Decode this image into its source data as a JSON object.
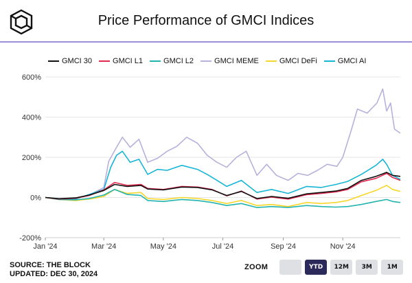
{
  "header": {
    "title": "Price Performance of GMCI Indices"
  },
  "footer": {
    "source": "SOURCE: THE BLOCK",
    "updated": "UPDATED: DEC 30, 2024"
  },
  "zoom": {
    "label": "ZOOM",
    "options": [
      {
        "label": "",
        "active": false
      },
      {
        "label": "YTD",
        "active": true
      },
      {
        "label": "12M",
        "active": false
      },
      {
        "label": "3M",
        "active": false
      },
      {
        "label": "1M",
        "active": false
      }
    ]
  },
  "chart_data": {
    "type": "line",
    "title": "Price Performance of GMCI Indices",
    "xlabel": "",
    "ylabel": "",
    "x_range": [
      "2024-01-01",
      "2024-12-30"
    ],
    "ylim": [
      -200,
      600
    ],
    "y_ticks": [
      -200,
      0,
      200,
      400,
      600
    ],
    "y_tick_labels": [
      "-200%",
      "0%",
      "200%",
      "400%",
      "600%"
    ],
    "x_ticks": [
      "2024-01-01",
      "2024-03-01",
      "2024-05-01",
      "2024-07-01",
      "2024-09-01",
      "2024-11-01"
    ],
    "x_tick_labels": [
      "Jan '24",
      "Mar '24",
      "May '24",
      "Jul '24",
      "Sep '24",
      "Nov '24"
    ],
    "grid": "horizontal",
    "legend_position": "top",
    "series": [
      {
        "name": "GMCI 30",
        "color": "#111111",
        "points": [
          [
            "2024-01-01",
            0
          ],
          [
            "2024-01-15",
            -6
          ],
          [
            "2024-02-01",
            -2
          ],
          [
            "2024-02-15",
            12
          ],
          [
            "2024-03-01",
            35
          ],
          [
            "2024-03-12",
            65
          ],
          [
            "2024-03-25",
            55
          ],
          [
            "2024-04-08",
            60
          ],
          [
            "2024-04-15",
            42
          ],
          [
            "2024-05-01",
            38
          ],
          [
            "2024-05-20",
            52
          ],
          [
            "2024-06-05",
            50
          ],
          [
            "2024-06-20",
            38
          ],
          [
            "2024-07-05",
            10
          ],
          [
            "2024-07-20",
            30
          ],
          [
            "2024-08-05",
            -5
          ],
          [
            "2024-08-20",
            5
          ],
          [
            "2024-09-06",
            -4
          ],
          [
            "2024-09-25",
            18
          ],
          [
            "2024-10-10",
            25
          ],
          [
            "2024-10-25",
            32
          ],
          [
            "2024-11-06",
            45
          ],
          [
            "2024-11-20",
            85
          ],
          [
            "2024-12-05",
            105
          ],
          [
            "2024-12-16",
            125
          ],
          [
            "2024-12-22",
            110
          ],
          [
            "2024-12-30",
            105
          ]
        ]
      },
      {
        "name": "GMCI L1",
        "color": "#e0284d",
        "points": [
          [
            "2024-01-01",
            0
          ],
          [
            "2024-01-15",
            -8
          ],
          [
            "2024-02-01",
            -4
          ],
          [
            "2024-02-15",
            10
          ],
          [
            "2024-03-01",
            38
          ],
          [
            "2024-03-12",
            75
          ],
          [
            "2024-03-25",
            60
          ],
          [
            "2024-04-08",
            65
          ],
          [
            "2024-04-15",
            45
          ],
          [
            "2024-05-01",
            40
          ],
          [
            "2024-05-20",
            55
          ],
          [
            "2024-06-05",
            52
          ],
          [
            "2024-06-20",
            40
          ],
          [
            "2024-07-05",
            8
          ],
          [
            "2024-07-20",
            32
          ],
          [
            "2024-08-05",
            -8
          ],
          [
            "2024-08-20",
            2
          ],
          [
            "2024-09-06",
            -8
          ],
          [
            "2024-09-25",
            14
          ],
          [
            "2024-10-10",
            20
          ],
          [
            "2024-10-25",
            28
          ],
          [
            "2024-11-06",
            40
          ],
          [
            "2024-11-20",
            78
          ],
          [
            "2024-12-05",
            95
          ],
          [
            "2024-12-16",
            120
          ],
          [
            "2024-12-22",
            100
          ],
          [
            "2024-12-30",
            85
          ]
        ]
      },
      {
        "name": "GMCI L2",
        "color": "#21b3b0",
        "points": [
          [
            "2024-01-01",
            0
          ],
          [
            "2024-01-15",
            -10
          ],
          [
            "2024-02-01",
            -12
          ],
          [
            "2024-02-15",
            -5
          ],
          [
            "2024-03-01",
            12
          ],
          [
            "2024-03-12",
            40
          ],
          [
            "2024-03-25",
            15
          ],
          [
            "2024-04-08",
            10
          ],
          [
            "2024-04-15",
            -15
          ],
          [
            "2024-05-01",
            -20
          ],
          [
            "2024-05-20",
            -10
          ],
          [
            "2024-06-05",
            -15
          ],
          [
            "2024-06-20",
            -25
          ],
          [
            "2024-07-05",
            -40
          ],
          [
            "2024-07-20",
            -30
          ],
          [
            "2024-08-05",
            -50
          ],
          [
            "2024-08-20",
            -45
          ],
          [
            "2024-09-06",
            -50
          ],
          [
            "2024-09-25",
            -40
          ],
          [
            "2024-10-10",
            -45
          ],
          [
            "2024-10-25",
            -48
          ],
          [
            "2024-11-06",
            -45
          ],
          [
            "2024-11-20",
            -35
          ],
          [
            "2024-12-05",
            -20
          ],
          [
            "2024-12-16",
            -10
          ],
          [
            "2024-12-22",
            -20
          ],
          [
            "2024-12-30",
            -25
          ]
        ]
      },
      {
        "name": "GMCI MEME",
        "color": "#b7b0dc",
        "points": [
          [
            "2024-01-01",
            0
          ],
          [
            "2024-01-15",
            -6
          ],
          [
            "2024-02-01",
            -3
          ],
          [
            "2024-02-15",
            12
          ],
          [
            "2024-03-01",
            50
          ],
          [
            "2024-03-06",
            180
          ],
          [
            "2024-03-14",
            250
          ],
          [
            "2024-03-20",
            300
          ],
          [
            "2024-03-28",
            250
          ],
          [
            "2024-04-06",
            290
          ],
          [
            "2024-04-15",
            175
          ],
          [
            "2024-04-25",
            195
          ],
          [
            "2024-05-05",
            230
          ],
          [
            "2024-05-15",
            255
          ],
          [
            "2024-05-25",
            300
          ],
          [
            "2024-06-05",
            270
          ],
          [
            "2024-06-15",
            210
          ],
          [
            "2024-06-25",
            175
          ],
          [
            "2024-07-05",
            150
          ],
          [
            "2024-07-15",
            200
          ],
          [
            "2024-07-25",
            230
          ],
          [
            "2024-08-05",
            110
          ],
          [
            "2024-08-15",
            165
          ],
          [
            "2024-08-25",
            110
          ],
          [
            "2024-09-06",
            85
          ],
          [
            "2024-09-16",
            120
          ],
          [
            "2024-09-26",
            110
          ],
          [
            "2024-10-06",
            135
          ],
          [
            "2024-10-16",
            165
          ],
          [
            "2024-10-26",
            155
          ],
          [
            "2024-11-01",
            200
          ],
          [
            "2024-11-10",
            340
          ],
          [
            "2024-11-16",
            440
          ],
          [
            "2024-11-26",
            420
          ],
          [
            "2024-12-06",
            470
          ],
          [
            "2024-12-12",
            540
          ],
          [
            "2024-12-16",
            430
          ],
          [
            "2024-12-20",
            470
          ],
          [
            "2024-12-24",
            340
          ],
          [
            "2024-12-30",
            320
          ]
        ]
      },
      {
        "name": "GMCI DeFi",
        "color": "#f7d62a",
        "points": [
          [
            "2024-01-01",
            0
          ],
          [
            "2024-01-15",
            -10
          ],
          [
            "2024-02-01",
            -15
          ],
          [
            "2024-02-15",
            -8
          ],
          [
            "2024-03-01",
            5
          ],
          [
            "2024-03-12",
            40
          ],
          [
            "2024-03-25",
            20
          ],
          [
            "2024-04-08",
            25
          ],
          [
            "2024-04-15",
            -5
          ],
          [
            "2024-05-01",
            -10
          ],
          [
            "2024-05-20",
            0
          ],
          [
            "2024-06-05",
            -5
          ],
          [
            "2024-06-20",
            -15
          ],
          [
            "2024-07-05",
            -30
          ],
          [
            "2024-07-20",
            -15
          ],
          [
            "2024-08-05",
            -40
          ],
          [
            "2024-08-20",
            -35
          ],
          [
            "2024-09-06",
            -45
          ],
          [
            "2024-09-25",
            -25
          ],
          [
            "2024-10-10",
            -30
          ],
          [
            "2024-10-25",
            -25
          ],
          [
            "2024-11-06",
            -15
          ],
          [
            "2024-11-20",
            10
          ],
          [
            "2024-12-05",
            35
          ],
          [
            "2024-12-16",
            60
          ],
          [
            "2024-12-22",
            40
          ],
          [
            "2024-12-30",
            30
          ]
        ]
      },
      {
        "name": "GMCI AI",
        "color": "#15b5d6",
        "points": [
          [
            "2024-01-01",
            0
          ],
          [
            "2024-01-15",
            -6
          ],
          [
            "2024-02-01",
            -8
          ],
          [
            "2024-02-15",
            15
          ],
          [
            "2024-03-01",
            40
          ],
          [
            "2024-03-08",
            150
          ],
          [
            "2024-03-14",
            210
          ],
          [
            "2024-03-20",
            230
          ],
          [
            "2024-03-28",
            175
          ],
          [
            "2024-04-06",
            190
          ],
          [
            "2024-04-15",
            115
          ],
          [
            "2024-04-25",
            140
          ],
          [
            "2024-05-05",
            135
          ],
          [
            "2024-05-20",
            160
          ],
          [
            "2024-06-05",
            140
          ],
          [
            "2024-06-15",
            115
          ],
          [
            "2024-06-25",
            85
          ],
          [
            "2024-07-05",
            55
          ],
          [
            "2024-07-20",
            85
          ],
          [
            "2024-08-05",
            25
          ],
          [
            "2024-08-20",
            40
          ],
          [
            "2024-09-06",
            20
          ],
          [
            "2024-09-25",
            55
          ],
          [
            "2024-10-10",
            50
          ],
          [
            "2024-10-25",
            65
          ],
          [
            "2024-11-06",
            80
          ],
          [
            "2024-11-20",
            115
          ],
          [
            "2024-12-05",
            160
          ],
          [
            "2024-12-12",
            190
          ],
          [
            "2024-12-16",
            165
          ],
          [
            "2024-12-22",
            110
          ],
          [
            "2024-12-30",
            90
          ]
        ]
      }
    ]
  }
}
